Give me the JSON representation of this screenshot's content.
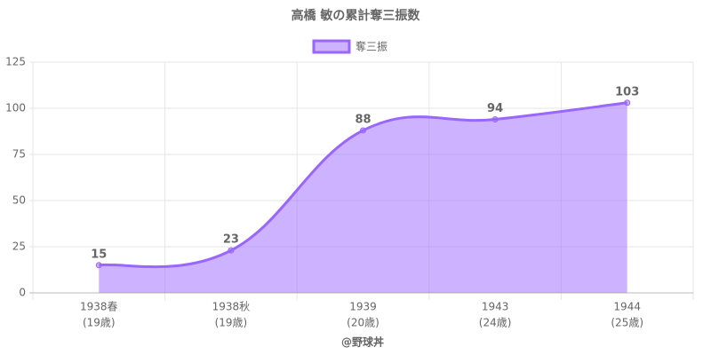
{
  "chart_data": {
    "type": "area",
    "title": "高橋 敏の累計奪三振数",
    "x_label": "@野球丼",
    "categories": [
      [
        "1938春",
        "(19歳)"
      ],
      [
        "1938秋",
        "(19歳)"
      ],
      [
        "1939",
        "(20歳)"
      ],
      [
        "1943",
        "(24歳)"
      ],
      [
        "1944",
        "(25歳)"
      ]
    ],
    "series": [
      {
        "name": "奪三振",
        "color": "#9966ff",
        "fill": "rgba(153,102,255,0.5)",
        "values": [
          15,
          23,
          88,
          94,
          103
        ]
      }
    ],
    "ylim": [
      0,
      125
    ],
    "yticks": [
      0,
      25,
      50,
      75,
      100,
      125
    ],
    "grid": true,
    "legend": "top",
    "data_labels": true
  }
}
